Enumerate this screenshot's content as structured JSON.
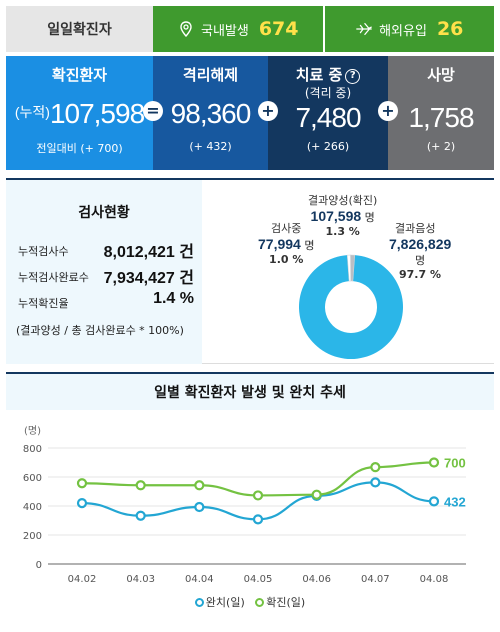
{
  "top": {
    "label": "일일확진자",
    "domestic_label": "국내발생",
    "domestic_value": "674",
    "overseas_label": "해외유입",
    "overseas_value": "26"
  },
  "stats": {
    "confirmed": {
      "title": "확진환자",
      "prefix": "(누적)",
      "value": "107,598",
      "delta": "전일대비 (+ 700)"
    },
    "released": {
      "title": "격리해제",
      "value": "98,360",
      "delta": "(+ 432)"
    },
    "treating": {
      "title": "치료 중",
      "sub": "(격리 중)",
      "help": "?",
      "value": "7,480",
      "delta": "(+ 266)"
    },
    "deceased": {
      "title": "사망",
      "value": "1,758",
      "delta": "(+ 2)"
    },
    "ops": [
      "=",
      "+",
      "+"
    ]
  },
  "tests": {
    "title": "검사현황",
    "rows": [
      {
        "label": "누적검사수",
        "value": "8,012,421 건"
      },
      {
        "label": "누적검사완료수",
        "value": "7,934,427 건"
      },
      {
        "label": "누적확진율",
        "value": "1.4 %"
      }
    ],
    "note": "(결과양성 / 총 검사완료수 * 100%)",
    "donut": {
      "positive": {
        "label": "결과양성(확진)",
        "value": "107,598",
        "unit": "명",
        "pct": "1.3 %",
        "fraction": 0.013
      },
      "pending": {
        "label": "검사중",
        "value": "77,994",
        "unit": "명",
        "pct": "1.0 %",
        "fraction": 0.01
      },
      "negative": {
        "label": "결과음성",
        "value": "7,826,829",
        "unit": "명",
        "pct": "97.7 %",
        "fraction": 0.977
      },
      "colors": {
        "negative": "#2bb6e8",
        "positive": "#b9bec4",
        "pending": "#ffffff"
      }
    }
  },
  "trend": {
    "title": "일별 확진환자 발생 및 완치 추세",
    "legend": {
      "cured": "완치(일)",
      "confirmed": "확진(일)"
    },
    "colors": {
      "cured": "#23a6d3",
      "confirmed": "#74c242"
    }
  },
  "chart_data": {
    "type": "line",
    "ylabel": "(명)",
    "ylim": [
      0,
      800
    ],
    "yticks": [
      "0",
      "200",
      "400",
      "600",
      "800"
    ],
    "categories": [
      "04.02",
      "04.03",
      "04.04",
      "04.05",
      "04.06",
      "04.07",
      "04.08"
    ],
    "series": [
      {
        "name": "완치(일)",
        "values": [
          420,
          333,
          393,
          308,
          470,
          563,
          432
        ],
        "end_label": "432"
      },
      {
        "name": "확진(일)",
        "values": [
          557,
          543,
          543,
          473,
          478,
          668,
          700
        ],
        "end_label": "700"
      }
    ]
  }
}
